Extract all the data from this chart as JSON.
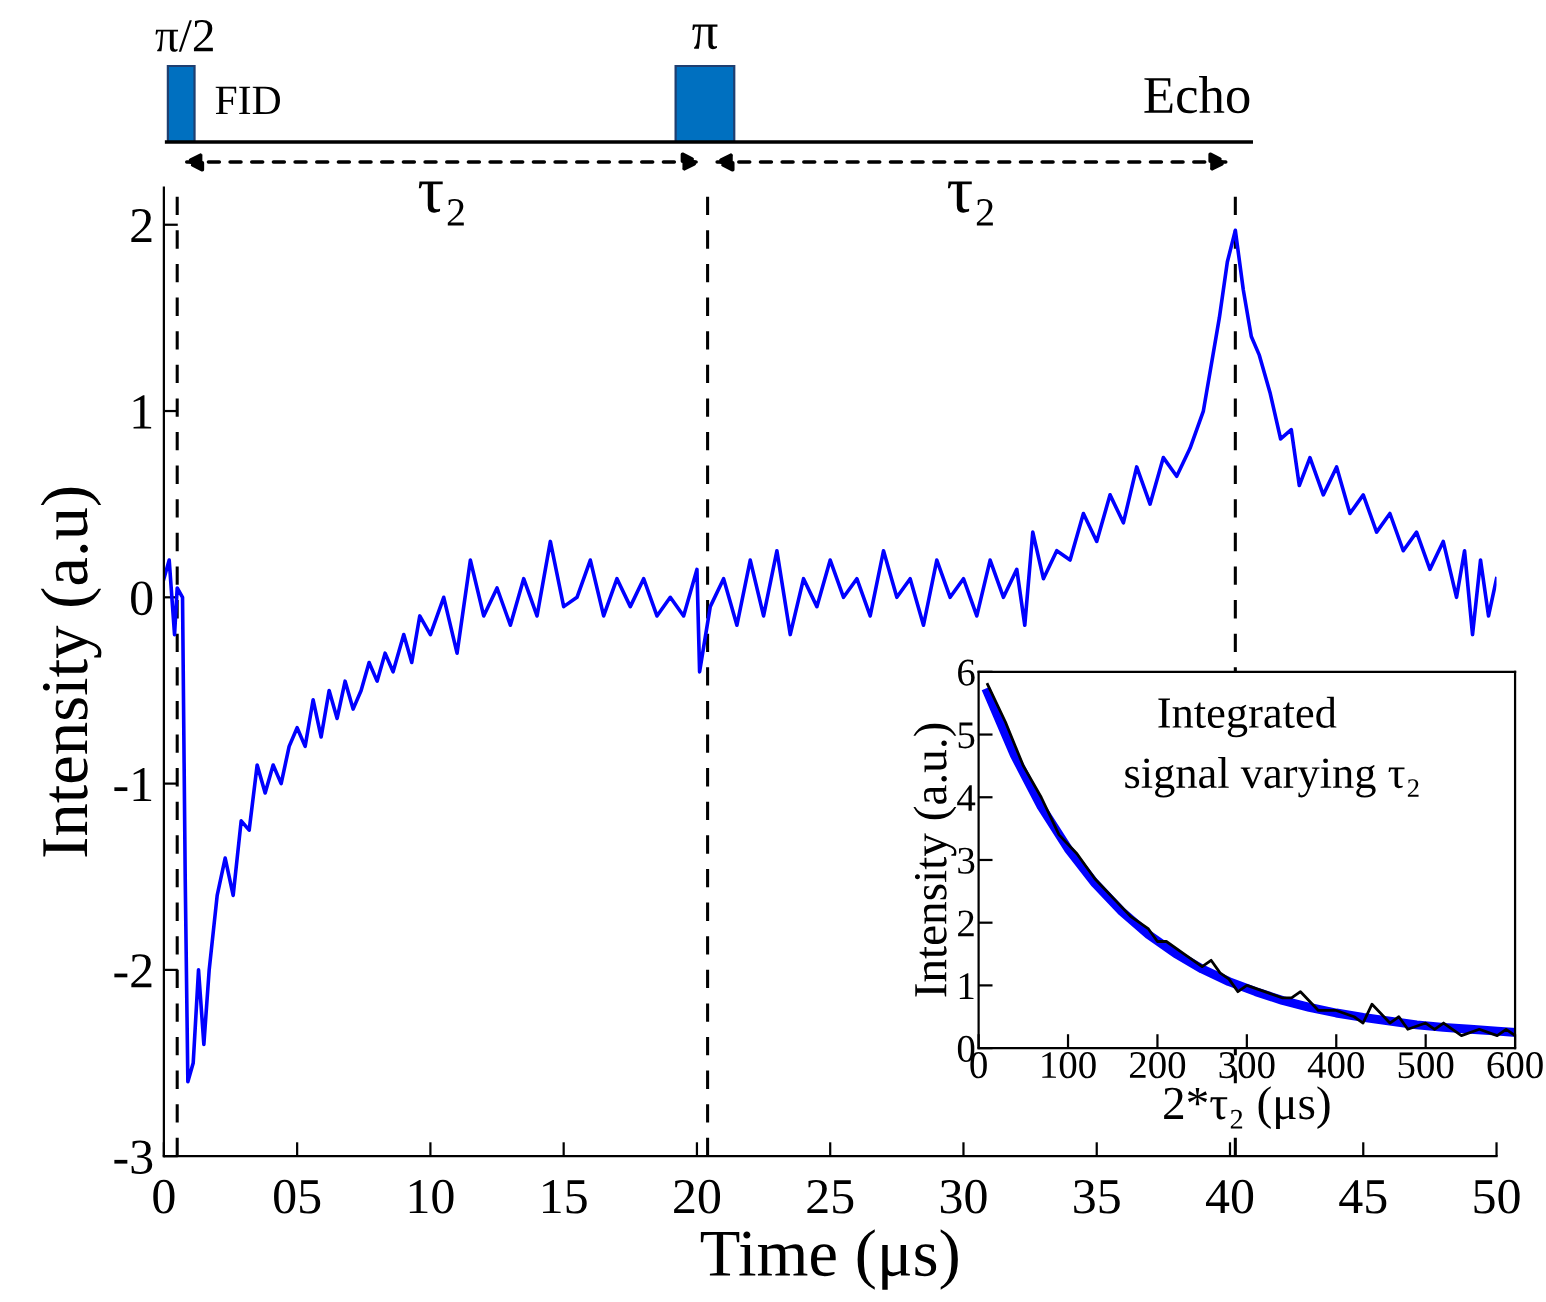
{
  "chart_data": [
    {
      "type": "line",
      "xlabel": "Time (μs)",
      "ylabel": "Intensity (a.u)",
      "xlim": [
        0,
        50
      ],
      "xticks": [
        0,
        {
          "value": 5,
          "label": "05"
        },
        10,
        15,
        20,
        25,
        30,
        35,
        40,
        45,
        50
      ],
      "ylim": [
        -3,
        2.2
      ],
      "yticks": [
        -3,
        -2,
        -1,
        0,
        1,
        2
      ],
      "grid": false,
      "legend": false,
      "ref_lines": [
        {
          "axis": "x",
          "value": 0.5,
          "label": null,
          "color": "#000000",
          "line_style": "dashed"
        },
        {
          "axis": "x",
          "value": 20.4,
          "label": null,
          "color": "#000000",
          "line_style": "dashed"
        },
        {
          "axis": "x",
          "value": 40.2,
          "label": null,
          "color": "#000000",
          "line_style": "dashed"
        }
      ],
      "annotations": [
        "π/2",
        "FID",
        "π",
        "Echo",
        "τ₂",
        "τ₂"
      ],
      "series": [
        {
          "color": "#0000ff",
          "x": [
            0,
            0.2,
            0.4,
            0.5,
            0.7,
            0.8,
            0.9,
            1.1,
            1.3,
            1.5,
            1.7,
            2.0,
            2.3,
            2.6,
            2.9,
            3.2,
            3.5,
            3.8,
            4.1,
            4.4,
            4.7,
            5.0,
            5.3,
            5.6,
            5.9,
            6.2,
            6.5,
            6.8,
            7.1,
            7.4,
            7.7,
            8.0,
            8.3,
            8.6,
            9.0,
            9.3,
            9.6,
            10,
            10.5,
            11,
            11.5,
            12,
            12.5,
            13,
            13.5,
            14,
            14.5,
            15,
            15.5,
            16,
            16.5,
            17,
            17.5,
            18,
            18.5,
            19,
            19.5,
            20,
            20.1,
            20.5,
            21,
            21.5,
            22,
            22.5,
            23,
            23.5,
            24,
            24.5,
            25,
            25.5,
            26,
            26.5,
            27,
            27.5,
            28,
            28.5,
            29,
            29.5,
            30,
            30.5,
            31,
            31.5,
            32,
            32.3,
            32.6,
            33,
            33.5,
            34,
            34.5,
            35,
            35.5,
            36,
            36.5,
            37,
            37.5,
            38,
            38.5,
            39,
            39.3,
            39.6,
            39.9,
            40.2,
            40.5,
            40.8,
            41.1,
            41.5,
            41.9,
            42.3,
            42.6,
            43,
            43.5,
            44,
            44.5,
            45,
            45.5,
            46,
            46.5,
            47,
            47.5,
            48,
            48.5,
            48.8,
            49.1,
            49.4,
            49.7,
            50
          ],
          "values": [
            0.1,
            0.2,
            -0.2,
            0.05,
            0.0,
            -1.5,
            -2.6,
            -2.5,
            -2.0,
            -2.4,
            -2.0,
            -1.6,
            -1.4,
            -1.6,
            -1.2,
            -1.25,
            -0.9,
            -1.05,
            -0.9,
            -1.0,
            -0.8,
            -0.7,
            -0.8,
            -0.55,
            -0.75,
            -0.5,
            -0.65,
            -0.45,
            -0.6,
            -0.5,
            -0.35,
            -0.45,
            -0.3,
            -0.4,
            -0.2,
            -0.35,
            -0.1,
            -0.2,
            0.0,
            -0.3,
            0.2,
            -0.1,
            0.05,
            -0.15,
            0.1,
            -0.1,
            0.3,
            -0.05,
            0.0,
            0.2,
            -0.1,
            0.1,
            -0.05,
            0.1,
            -0.1,
            0.0,
            -0.1,
            0.15,
            -0.4,
            -0.05,
            0.1,
            -0.15,
            0.2,
            -0.1,
            0.25,
            -0.2,
            0.1,
            -0.05,
            0.2,
            0.0,
            0.1,
            -0.1,
            0.25,
            0.0,
            0.1,
            -0.15,
            0.2,
            0.0,
            0.1,
            -0.1,
            0.2,
            0.0,
            0.15,
            -0.15,
            0.35,
            0.1,
            0.25,
            0.2,
            0.45,
            0.3,
            0.55,
            0.4,
            0.7,
            0.5,
            0.75,
            0.65,
            0.8,
            1.0,
            1.25,
            1.5,
            1.8,
            1.97,
            1.65,
            1.4,
            1.3,
            1.1,
            0.85,
            0.9,
            0.6,
            0.75,
            0.55,
            0.7,
            0.45,
            0.55,
            0.35,
            0.45,
            0.25,
            0.35,
            0.15,
            0.3,
            0.0,
            0.25,
            -0.2,
            0.2,
            -0.1,
            0.1
          ]
        }
      ]
    },
    {
      "type": "line",
      "xlabel": "2*τ₂ (μs)",
      "ylabel": "Intensity (a.u.)",
      "xlim": [
        0,
        600
      ],
      "xticks": [
        0,
        100,
        200,
        300,
        400,
        500,
        600
      ],
      "ylim": [
        0,
        6
      ],
      "yticks": [
        0,
        1,
        2,
        3,
        4,
        5,
        6
      ],
      "grid": false,
      "legend": false,
      "annotations": [
        "Integrated",
        "signal varying τ₂"
      ],
      "series": [
        {
          "color": "#0000ff",
          "x": [
            10,
            40,
            70,
            100,
            130,
            160,
            190,
            220,
            250,
            280,
            310,
            340,
            370,
            400,
            430,
            460,
            490,
            520,
            550,
            580,
            600
          ],
          "values": [
            5.67,
            4.67,
            3.85,
            3.18,
            2.63,
            2.18,
            1.81,
            1.51,
            1.26,
            1.06,
            0.9,
            0.76,
            0.65,
            0.56,
            0.49,
            0.43,
            0.37,
            0.33,
            0.3,
            0.27,
            0.25
          ]
        },
        {
          "color": "#000000",
          "x": [
            10,
            30,
            50,
            70,
            90,
            110,
            130,
            150,
            170,
            180,
            190,
            200,
            210,
            230,
            240,
            250,
            260,
            270,
            280,
            290,
            300,
            320,
            340,
            350,
            360,
            380,
            400,
            420,
            430,
            440,
            460,
            470,
            480,
            500,
            510,
            520,
            540,
            560,
            580,
            590,
            600
          ],
          "values": [
            5.8,
            5.2,
            4.5,
            4.0,
            3.4,
            3.1,
            2.7,
            2.4,
            2.1,
            2.0,
            1.9,
            1.7,
            1.7,
            1.5,
            1.4,
            1.3,
            1.4,
            1.2,
            1.1,
            0.9,
            1.0,
            0.9,
            0.8,
            0.8,
            0.9,
            0.6,
            0.6,
            0.5,
            0.4,
            0.7,
            0.4,
            0.5,
            0.3,
            0.4,
            0.3,
            0.4,
            0.2,
            0.3,
            0.2,
            0.3,
            0.2
          ]
        }
      ]
    }
  ]
}
